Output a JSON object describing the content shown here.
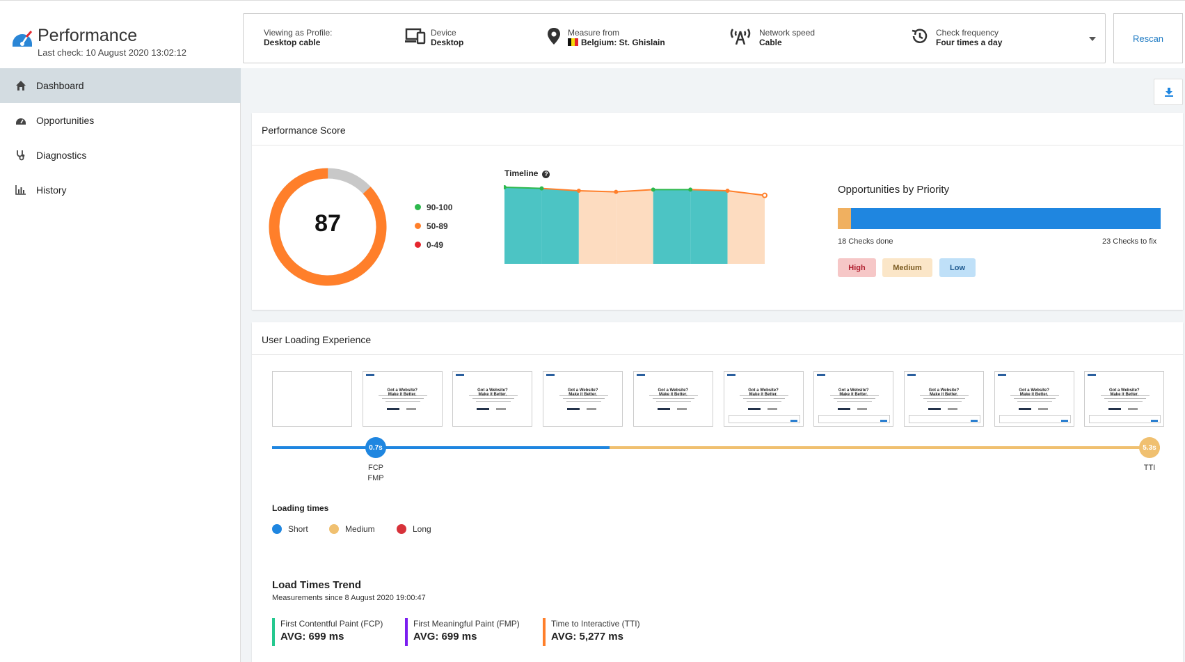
{
  "colors": {
    "green": "#2db84d",
    "orange": "#ff7f2a",
    "red": "#e5262e",
    "blue": "#1f86e0",
    "sand": "#f0c070",
    "teal": "#4cc4c4",
    "peach": "#fddcc0",
    "fmp_purple": "#7b1ef0",
    "fcp_teal": "#25c88f"
  },
  "header": {
    "title": "Performance",
    "last_check": "Last check: 10 August 2020 13:02:12",
    "profile": {
      "label": "Viewing as Profile:",
      "value": "Desktop cable"
    },
    "device": {
      "label": "Device",
      "value": "Desktop",
      "icon": "device-icon"
    },
    "location": {
      "label": "Measure from",
      "value": "Belgium: St. Ghislain",
      "icon": "location-pin-icon"
    },
    "network": {
      "label": "Network speed",
      "value": "Cable",
      "icon": "antenna-icon"
    },
    "frequency": {
      "label": "Check frequency",
      "value": "Four times a day",
      "icon": "history-icon"
    },
    "rescan": "Rescan"
  },
  "sidebar": {
    "items": [
      {
        "label": "Dashboard",
        "icon": "home-icon",
        "active": true
      },
      {
        "label": "Opportunities",
        "icon": "speedometer-icon",
        "active": false
      },
      {
        "label": "Diagnostics",
        "icon": "stethoscope-icon",
        "active": false
      },
      {
        "label": "History",
        "icon": "bar-chart-icon",
        "active": false
      }
    ]
  },
  "performance_score": {
    "title": "Performance Score",
    "score": "87",
    "legend": [
      "90-100",
      "50-89",
      "0-49"
    ]
  },
  "timeline": {
    "title": "Timeline"
  },
  "chart_data": {
    "type": "area",
    "title": "Timeline",
    "x": [
      1,
      2,
      3,
      4,
      5,
      6,
      7,
      8
    ],
    "values": [
      92,
      91,
      89,
      88,
      90,
      90,
      89,
      85
    ],
    "colors": [
      "green",
      "green",
      "orange",
      "orange",
      "green",
      "green",
      "orange",
      "orange"
    ],
    "ylim": [
      0,
      100
    ]
  },
  "opportunities": {
    "title": "Opportunities by Priority",
    "done_label": "18 Checks done",
    "fix_label": "23 Checks to fix",
    "high_fraction": 0.04,
    "pills": [
      "High",
      "Medium",
      "Low"
    ]
  },
  "ule": {
    "title": "User Loading Experience",
    "thumb_heading": "Got a Website?\nMake it Better.",
    "fcp_time": "0.7s",
    "tti_time": "5.3s",
    "fcp_label": "FCP",
    "fmp_label": "FMP",
    "tti_label": "TTI",
    "short_fraction": 0.38,
    "loading_times_title": "Loading times",
    "loading_legend": [
      "Short",
      "Medium",
      "Long"
    ]
  },
  "trend": {
    "title": "Load Times Trend",
    "subtitle": "Measurements since 8 August 2020 19:00:47",
    "metrics": [
      {
        "label": "First Contentful Paint (FCP)",
        "value": "AVG: 699 ms"
      },
      {
        "label": "First Meaningful Paint (FMP)",
        "value": "AVG: 699 ms"
      },
      {
        "label": "Time to Interactive (TTI)",
        "value": "AVG: 5,277 ms"
      }
    ]
  }
}
